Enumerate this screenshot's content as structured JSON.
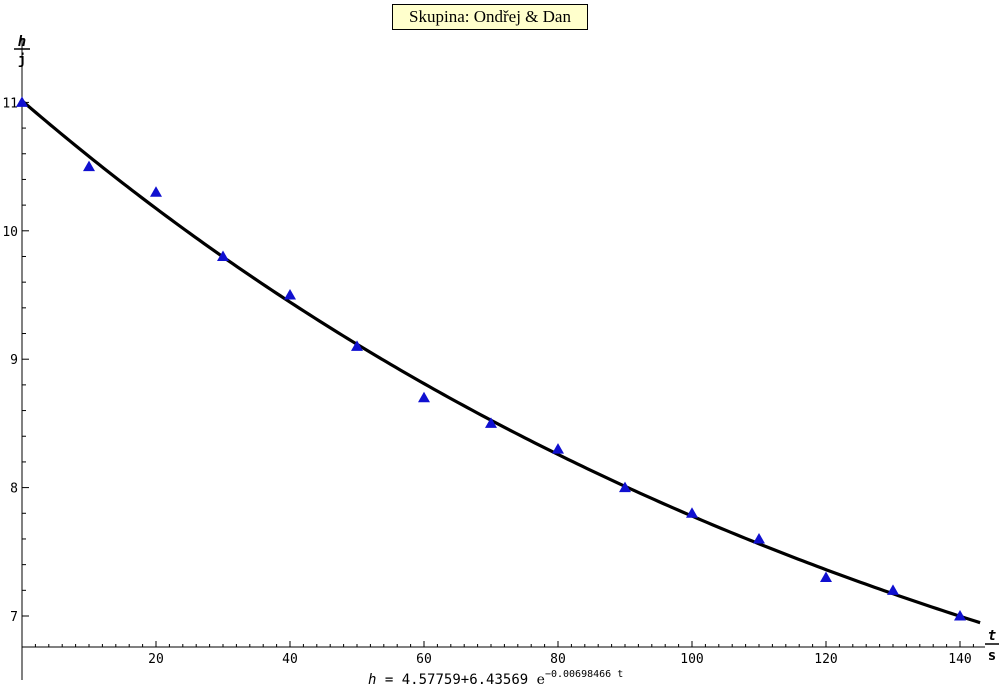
{
  "chart_data": {
    "type": "scatter",
    "title": "Skupina: Ondřej & Dan",
    "x_axis": {
      "label_top": "t",
      "label_bottom": "s",
      "range": [
        0,
        143
      ],
      "ticks": [
        20,
        40,
        60,
        80,
        100,
        120,
        140
      ]
    },
    "y_axis": {
      "label_top": "h",
      "label_bottom": "j",
      "range": [
        6.9,
        11.15
      ],
      "ticks": [
        7,
        8,
        9,
        10,
        11
      ]
    },
    "points": [
      {
        "x": 0,
        "y": 11.0
      },
      {
        "x": 10,
        "y": 10.5
      },
      {
        "x": 20,
        "y": 10.3
      },
      {
        "x": 30,
        "y": 9.8
      },
      {
        "x": 40,
        "y": 9.5
      },
      {
        "x": 50,
        "y": 9.1
      },
      {
        "x": 60,
        "y": 8.7
      },
      {
        "x": 70,
        "y": 8.5
      },
      {
        "x": 80,
        "y": 8.3
      },
      {
        "x": 90,
        "y": 8.0
      },
      {
        "x": 100,
        "y": 7.8
      },
      {
        "x": 110,
        "y": 7.6
      },
      {
        "x": 120,
        "y": 7.3
      },
      {
        "x": 130,
        "y": 7.2
      },
      {
        "x": 140,
        "y": 7.0
      }
    ],
    "fit": {
      "a": 4.57759,
      "b": 6.43569,
      "k": 0.00698466,
      "x_range": [
        0,
        143
      ]
    },
    "marker_color": "#1010d0",
    "curve_color": "#000000",
    "grid": false
  },
  "formula": {
    "lhs": "h",
    "eq": "=",
    "const_a": "4.57759",
    "plus": "+",
    "const_b": "6.43569",
    "base": "e",
    "exponent": "−0.00698466 t"
  }
}
